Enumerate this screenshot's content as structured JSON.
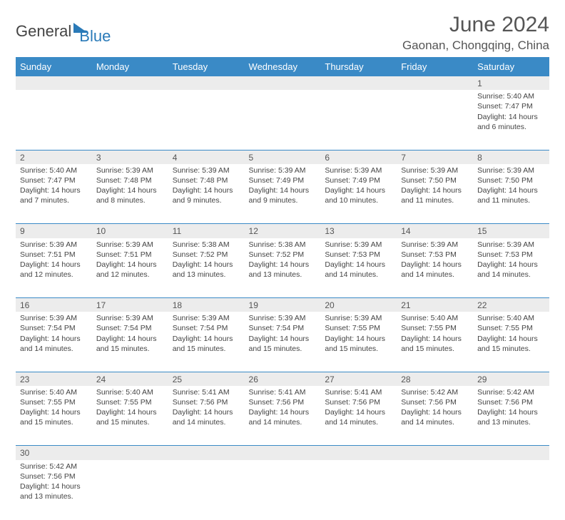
{
  "brand": {
    "text1": "General",
    "text2": "Blue"
  },
  "header": {
    "title": "June 2024",
    "location": "Gaonan, Chongqing, China"
  },
  "colors": {
    "header_bg": "#3a8ac6",
    "header_text": "#ffffff",
    "daynum_bg": "#ececec",
    "cell_border": "#3a8ac6",
    "body_text": "#444444",
    "brand_blue": "#2a7ab8",
    "brand_gray": "#444444"
  },
  "dayHeaders": [
    "Sunday",
    "Monday",
    "Tuesday",
    "Wednesday",
    "Thursday",
    "Friday",
    "Saturday"
  ],
  "weeks": [
    {
      "nums": [
        "",
        "",
        "",
        "",
        "",
        "",
        "1"
      ],
      "cells": [
        null,
        null,
        null,
        null,
        null,
        null,
        {
          "sunrise": "Sunrise: 5:40 AM",
          "sunset": "Sunset: 7:47 PM",
          "day1": "Daylight: 14 hours",
          "day2": "and 6 minutes."
        }
      ]
    },
    {
      "nums": [
        "2",
        "3",
        "4",
        "5",
        "6",
        "7",
        "8"
      ],
      "cells": [
        {
          "sunrise": "Sunrise: 5:40 AM",
          "sunset": "Sunset: 7:47 PM",
          "day1": "Daylight: 14 hours",
          "day2": "and 7 minutes."
        },
        {
          "sunrise": "Sunrise: 5:39 AM",
          "sunset": "Sunset: 7:48 PM",
          "day1": "Daylight: 14 hours",
          "day2": "and 8 minutes."
        },
        {
          "sunrise": "Sunrise: 5:39 AM",
          "sunset": "Sunset: 7:48 PM",
          "day1": "Daylight: 14 hours",
          "day2": "and 9 minutes."
        },
        {
          "sunrise": "Sunrise: 5:39 AM",
          "sunset": "Sunset: 7:49 PM",
          "day1": "Daylight: 14 hours",
          "day2": "and 9 minutes."
        },
        {
          "sunrise": "Sunrise: 5:39 AM",
          "sunset": "Sunset: 7:49 PM",
          "day1": "Daylight: 14 hours",
          "day2": "and 10 minutes."
        },
        {
          "sunrise": "Sunrise: 5:39 AM",
          "sunset": "Sunset: 7:50 PM",
          "day1": "Daylight: 14 hours",
          "day2": "and 11 minutes."
        },
        {
          "sunrise": "Sunrise: 5:39 AM",
          "sunset": "Sunset: 7:50 PM",
          "day1": "Daylight: 14 hours",
          "day2": "and 11 minutes."
        }
      ]
    },
    {
      "nums": [
        "9",
        "10",
        "11",
        "12",
        "13",
        "14",
        "15"
      ],
      "cells": [
        {
          "sunrise": "Sunrise: 5:39 AM",
          "sunset": "Sunset: 7:51 PM",
          "day1": "Daylight: 14 hours",
          "day2": "and 12 minutes."
        },
        {
          "sunrise": "Sunrise: 5:39 AM",
          "sunset": "Sunset: 7:51 PM",
          "day1": "Daylight: 14 hours",
          "day2": "and 12 minutes."
        },
        {
          "sunrise": "Sunrise: 5:38 AM",
          "sunset": "Sunset: 7:52 PM",
          "day1": "Daylight: 14 hours",
          "day2": "and 13 minutes."
        },
        {
          "sunrise": "Sunrise: 5:38 AM",
          "sunset": "Sunset: 7:52 PM",
          "day1": "Daylight: 14 hours",
          "day2": "and 13 minutes."
        },
        {
          "sunrise": "Sunrise: 5:39 AM",
          "sunset": "Sunset: 7:53 PM",
          "day1": "Daylight: 14 hours",
          "day2": "and 14 minutes."
        },
        {
          "sunrise": "Sunrise: 5:39 AM",
          "sunset": "Sunset: 7:53 PM",
          "day1": "Daylight: 14 hours",
          "day2": "and 14 minutes."
        },
        {
          "sunrise": "Sunrise: 5:39 AM",
          "sunset": "Sunset: 7:53 PM",
          "day1": "Daylight: 14 hours",
          "day2": "and 14 minutes."
        }
      ]
    },
    {
      "nums": [
        "16",
        "17",
        "18",
        "19",
        "20",
        "21",
        "22"
      ],
      "cells": [
        {
          "sunrise": "Sunrise: 5:39 AM",
          "sunset": "Sunset: 7:54 PM",
          "day1": "Daylight: 14 hours",
          "day2": "and 14 minutes."
        },
        {
          "sunrise": "Sunrise: 5:39 AM",
          "sunset": "Sunset: 7:54 PM",
          "day1": "Daylight: 14 hours",
          "day2": "and 15 minutes."
        },
        {
          "sunrise": "Sunrise: 5:39 AM",
          "sunset": "Sunset: 7:54 PM",
          "day1": "Daylight: 14 hours",
          "day2": "and 15 minutes."
        },
        {
          "sunrise": "Sunrise: 5:39 AM",
          "sunset": "Sunset: 7:54 PM",
          "day1": "Daylight: 14 hours",
          "day2": "and 15 minutes."
        },
        {
          "sunrise": "Sunrise: 5:39 AM",
          "sunset": "Sunset: 7:55 PM",
          "day1": "Daylight: 14 hours",
          "day2": "and 15 minutes."
        },
        {
          "sunrise": "Sunrise: 5:40 AM",
          "sunset": "Sunset: 7:55 PM",
          "day1": "Daylight: 14 hours",
          "day2": "and 15 minutes."
        },
        {
          "sunrise": "Sunrise: 5:40 AM",
          "sunset": "Sunset: 7:55 PM",
          "day1": "Daylight: 14 hours",
          "day2": "and 15 minutes."
        }
      ]
    },
    {
      "nums": [
        "23",
        "24",
        "25",
        "26",
        "27",
        "28",
        "29"
      ],
      "cells": [
        {
          "sunrise": "Sunrise: 5:40 AM",
          "sunset": "Sunset: 7:55 PM",
          "day1": "Daylight: 14 hours",
          "day2": "and 15 minutes."
        },
        {
          "sunrise": "Sunrise: 5:40 AM",
          "sunset": "Sunset: 7:55 PM",
          "day1": "Daylight: 14 hours",
          "day2": "and 15 minutes."
        },
        {
          "sunrise": "Sunrise: 5:41 AM",
          "sunset": "Sunset: 7:56 PM",
          "day1": "Daylight: 14 hours",
          "day2": "and 14 minutes."
        },
        {
          "sunrise": "Sunrise: 5:41 AM",
          "sunset": "Sunset: 7:56 PM",
          "day1": "Daylight: 14 hours",
          "day2": "and 14 minutes."
        },
        {
          "sunrise": "Sunrise: 5:41 AM",
          "sunset": "Sunset: 7:56 PM",
          "day1": "Daylight: 14 hours",
          "day2": "and 14 minutes."
        },
        {
          "sunrise": "Sunrise: 5:42 AM",
          "sunset": "Sunset: 7:56 PM",
          "day1": "Daylight: 14 hours",
          "day2": "and 14 minutes."
        },
        {
          "sunrise": "Sunrise: 5:42 AM",
          "sunset": "Sunset: 7:56 PM",
          "day1": "Daylight: 14 hours",
          "day2": "and 13 minutes."
        }
      ]
    },
    {
      "nums": [
        "30",
        "",
        "",
        "",
        "",
        "",
        ""
      ],
      "cells": [
        {
          "sunrise": "Sunrise: 5:42 AM",
          "sunset": "Sunset: 7:56 PM",
          "day1": "Daylight: 14 hours",
          "day2": "and 13 minutes."
        },
        null,
        null,
        null,
        null,
        null,
        null
      ]
    }
  ]
}
